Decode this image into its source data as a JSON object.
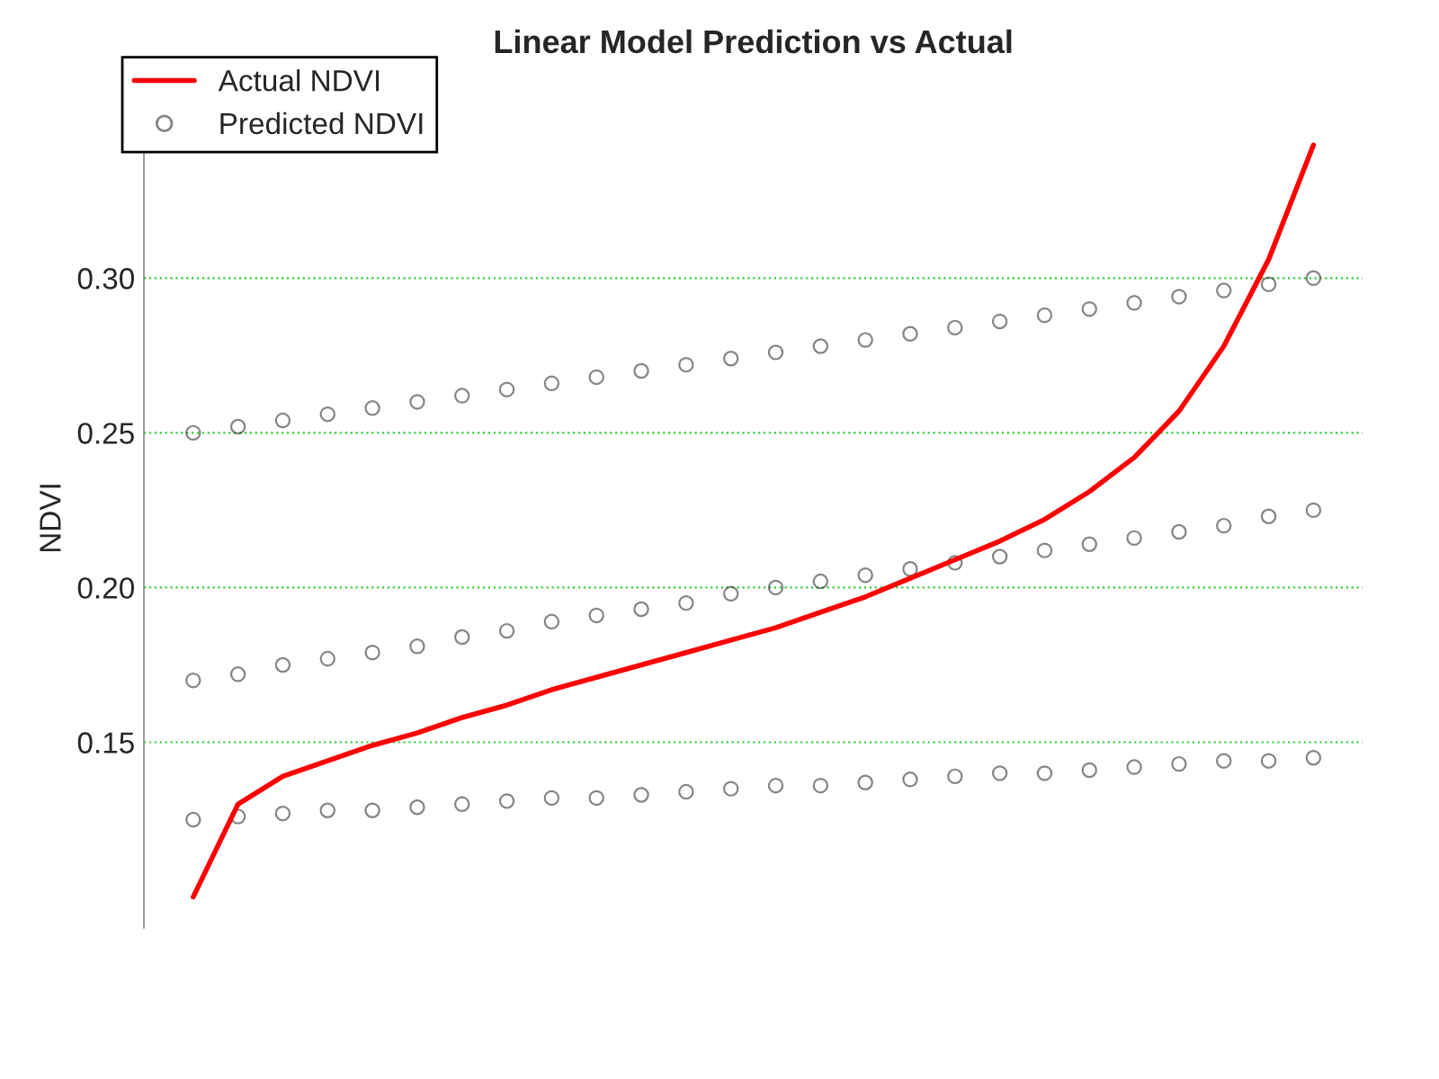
{
  "chart_data": {
    "type": "scatter",
    "title": "Linear Model Prediction vs Actual",
    "ylabel": "NDVI",
    "categories": [
      null,
      null,
      null,
      null,
      null,
      null,
      null,
      null,
      null,
      null,
      null,
      null,
      null,
      null,
      null,
      null,
      null,
      null,
      null,
      null,
      null,
      null,
      null,
      null,
      null,
      null
    ],
    "series": [
      {
        "name": "Actual NDVI",
        "type": "line",
        "color": "#ff0000",
        "marker": "none",
        "line_style": "solid",
        "values": [
          0.1,
          0.13,
          0.139,
          0.144,
          0.149,
          0.153,
          0.158,
          0.162,
          0.167,
          0.171,
          0.175,
          0.179,
          0.183,
          0.187,
          0.192,
          0.197,
          0.203,
          0.209,
          0.215,
          0.222,
          0.231,
          0.242,
          0.257,
          0.278,
          0.306,
          0.343
        ]
      },
      {
        "name": "Predicted NDVI",
        "color": "#333333",
        "marker": "circle",
        "values": [
          0.17,
          0.172,
          0.175,
          0.177,
          0.179,
          0.181,
          0.184,
          0.186,
          0.189,
          0.191,
          0.193,
          0.195,
          0.198,
          0.2,
          0.202,
          0.204,
          0.206,
          0.208,
          0.21,
          0.212,
          0.214,
          0.216,
          0.218,
          0.22,
          0.223,
          0.225
        ]
      },
      {
        "color": "#333333",
        "marker": "circle",
        "values": [
          0.25,
          0.252,
          0.254,
          0.256,
          0.258,
          0.26,
          0.262,
          0.264,
          0.266,
          0.268,
          0.27,
          0.272,
          0.274,
          0.276,
          0.278,
          0.28,
          0.282,
          0.284,
          0.286,
          0.288,
          0.29,
          0.292,
          0.294,
          0.296,
          0.298,
          0.3
        ]
      },
      {
        "color": "#333333",
        "marker": "circle",
        "values": [
          0.125,
          0.126,
          0.127,
          0.128,
          0.128,
          0.129,
          0.13,
          0.131,
          0.132,
          0.132,
          0.133,
          0.134,
          0.135,
          0.136,
          0.136,
          0.137,
          0.138,
          0.139,
          0.14,
          0.14,
          0.141,
          0.142,
          0.143,
          0.144,
          0.144,
          0.145
        ]
      }
    ],
    "ylim": [
      0.09,
      0.355
    ],
    "yticks": [
      {
        "value": 0.15,
        "label": "0.15"
      },
      {
        "value": 0.2,
        "label": "0.20"
      },
      {
        "value": 0.25,
        "label": "0.25"
      },
      {
        "value": 0.3,
        "label": "0.30"
      }
    ],
    "tick_labels": "y",
    "grid": "y",
    "legend": "top left"
  }
}
